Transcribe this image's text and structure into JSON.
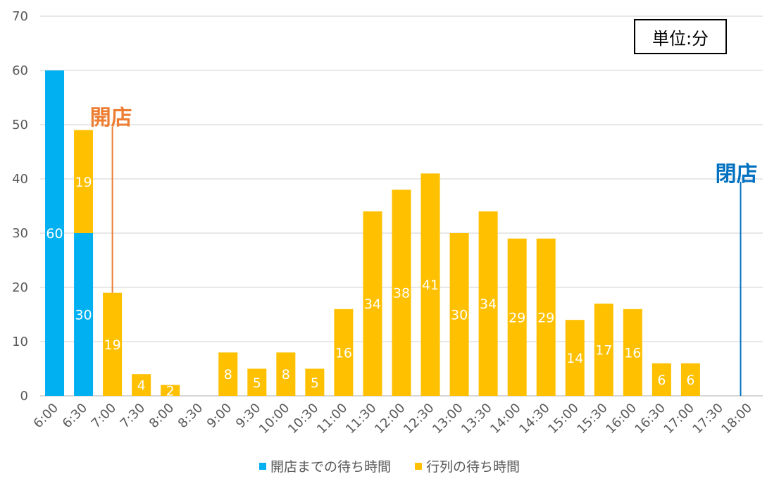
{
  "chart_data": {
    "type": "bar",
    "stacked": true,
    "categories": [
      "6:00",
      "6:30",
      "7:00",
      "7:30",
      "8:00",
      "8:30",
      "9:00",
      "9:30",
      "10:00",
      "10:30",
      "11:00",
      "11:30",
      "12:00",
      "12:30",
      "13:00",
      "13:30",
      "14:00",
      "14:30",
      "15:00",
      "15:30",
      "16:00",
      "16:30",
      "17:00",
      "17:30",
      "18:00"
    ],
    "series": [
      {
        "name": "開店までの待ち時間",
        "color": "#00B0F0",
        "values": [
          60,
          30,
          0,
          0,
          0,
          0,
          0,
          0,
          0,
          0,
          0,
          0,
          0,
          0,
          0,
          0,
          0,
          0,
          0,
          0,
          0,
          0,
          0,
          0,
          0
        ]
      },
      {
        "name": "行列の待ち時間",
        "color": "#FFC000",
        "values": [
          0,
          19,
          19,
          4,
          2,
          0,
          8,
          5,
          8,
          5,
          16,
          34,
          38,
          41,
          30,
          34,
          29,
          29,
          14,
          17,
          16,
          6,
          6,
          0,
          0
        ]
      }
    ],
    "ylim": [
      0,
      70
    ],
    "yticks": [
      0,
      10,
      20,
      30,
      40,
      50,
      60,
      70
    ],
    "grid": true,
    "legend_position": "bottom",
    "unit_label": "単位:分",
    "annotations": [
      {
        "text": "開店",
        "category": "7:00",
        "color": "#ED7D31"
      },
      {
        "text": "閉店",
        "category": "18:00",
        "color": "#0070C0"
      }
    ]
  }
}
